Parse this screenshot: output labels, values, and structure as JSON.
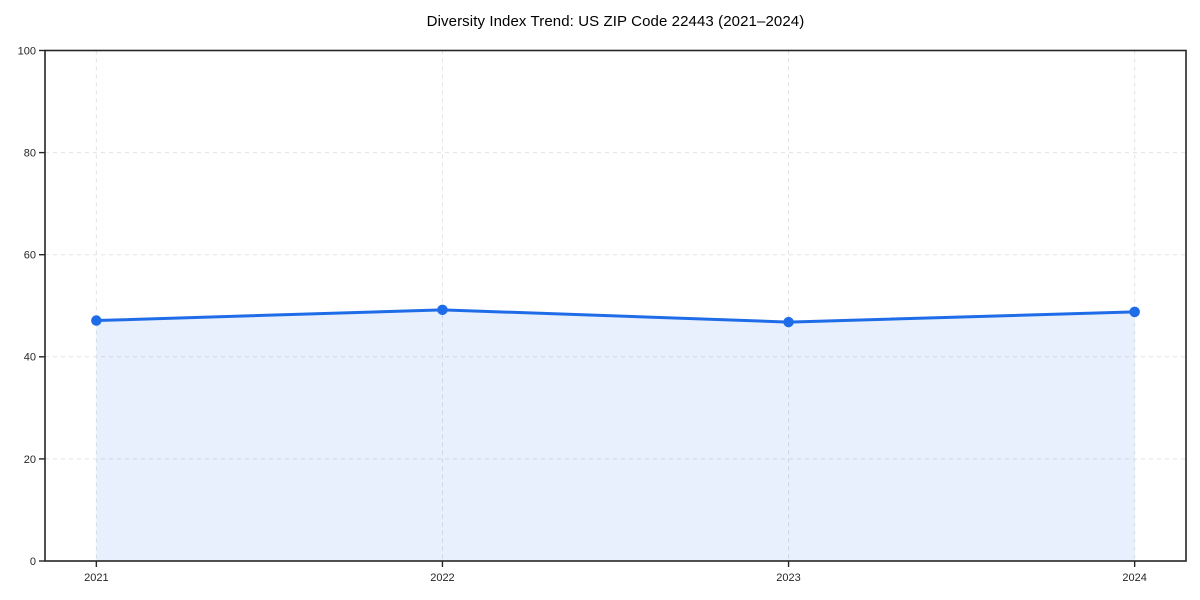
{
  "page": {
    "background": "#ffffff"
  },
  "chart_data": {
    "type": "area",
    "title": "Diversity Index Trend: US ZIP Code 22443 (2021–2024)",
    "x": [
      "2021",
      "2022",
      "2023",
      "2024"
    ],
    "series": [
      {
        "name": "Diversity Index",
        "values": [
          47.1,
          49.2,
          46.8,
          48.8
        ]
      }
    ],
    "xlabel": "",
    "ylabel": "",
    "ylim": [
      0,
      100
    ],
    "yticks": [
      0,
      20,
      40,
      60,
      80,
      100
    ],
    "grid": true,
    "grid_style": "dashed",
    "legend_position": "none",
    "marker": "circle",
    "colors": {
      "line": "#1f6ce8",
      "marker": "#1f6ce8",
      "fill": "#e8effc",
      "fill_opacity": 0.1,
      "gridline": "#e3e3e3",
      "spine": "#262626",
      "tick_label": "#262626",
      "title": "#000000"
    }
  }
}
